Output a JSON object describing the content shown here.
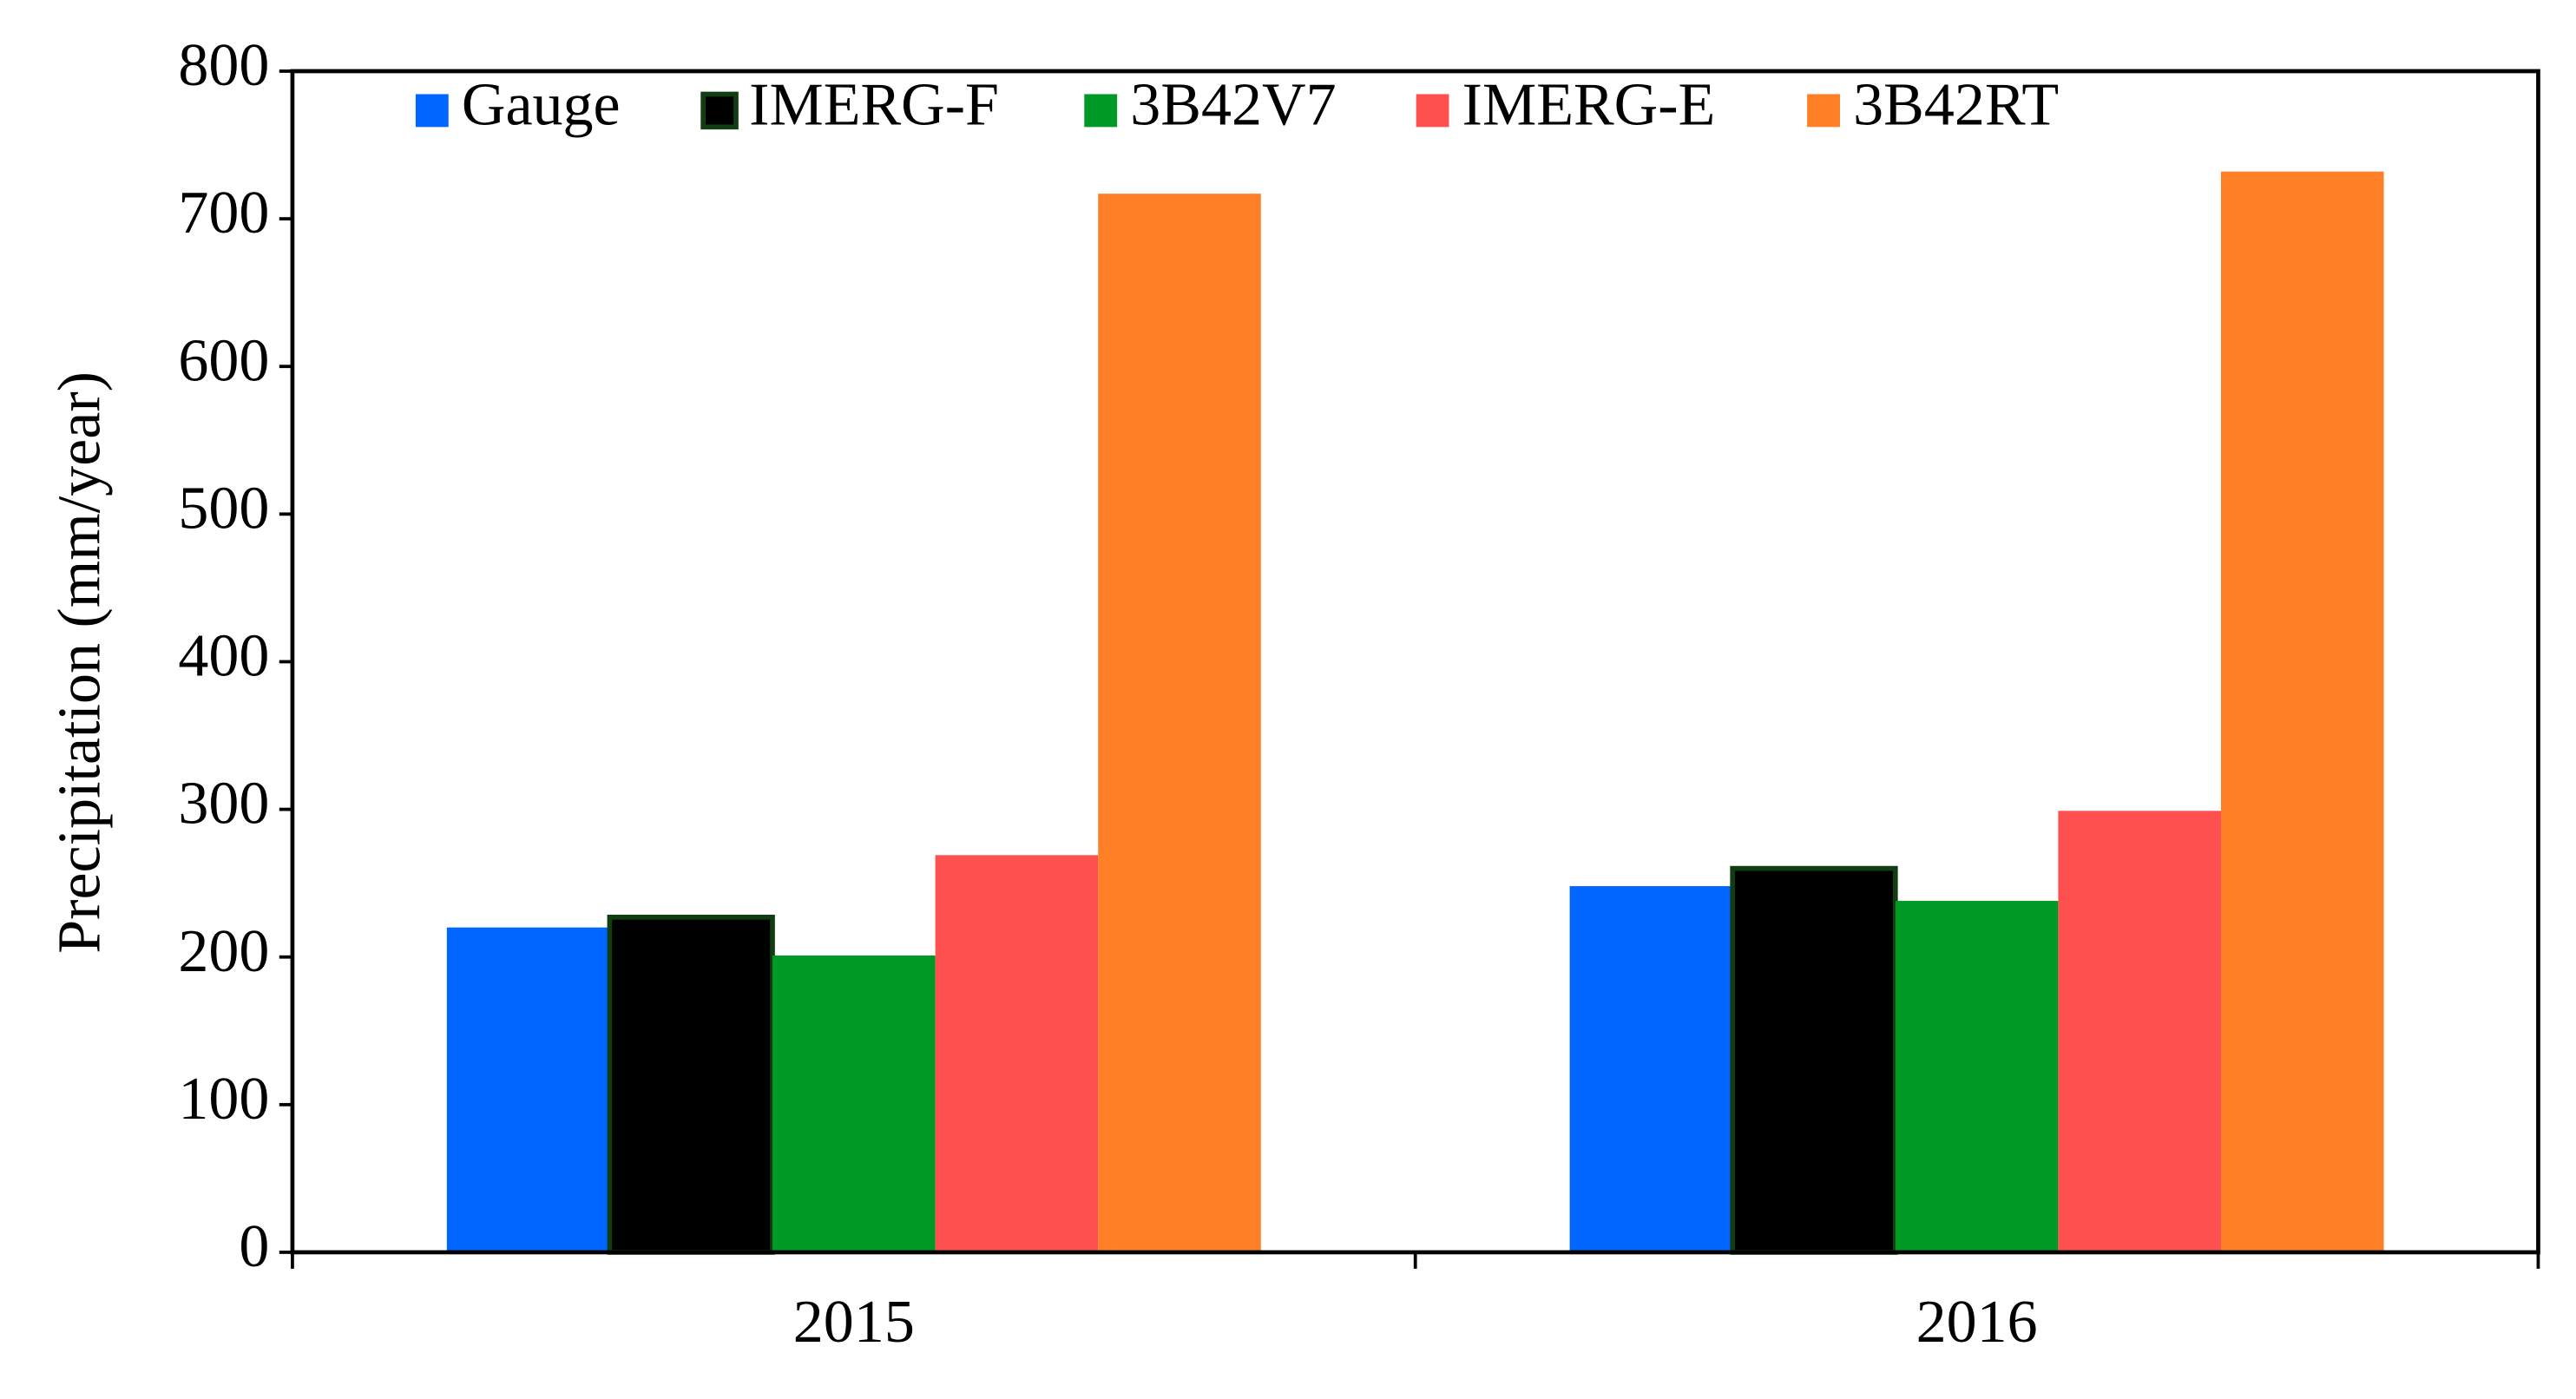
{
  "chart_data": {
    "type": "bar",
    "y_label": "Precipitation (mm/year)",
    "categories": [
      "2015",
      "2016"
    ],
    "series": [
      {
        "name": "Gauge",
        "color": "#0066ff",
        "values": [
          220,
          248
        ]
      },
      {
        "name": "IMERG-F",
        "color": "#000000",
        "edgecolor": "#123d12",
        "values": [
          227,
          260
        ]
      },
      {
        "name": "3B42V7",
        "color": "#009926",
        "values": [
          201,
          238
        ]
      },
      {
        "name": "IMERG-E",
        "color": "#ff5050",
        "values": [
          269,
          299
        ]
      },
      {
        "name": "3B42RT",
        "color": "#ff7f27",
        "values": [
          717,
          732
        ]
      }
    ],
    "ylim": [
      0,
      800
    ],
    "yticks": [
      0,
      100,
      200,
      300,
      400,
      500,
      600,
      700,
      800
    ],
    "grid": false,
    "legend": "top"
  }
}
